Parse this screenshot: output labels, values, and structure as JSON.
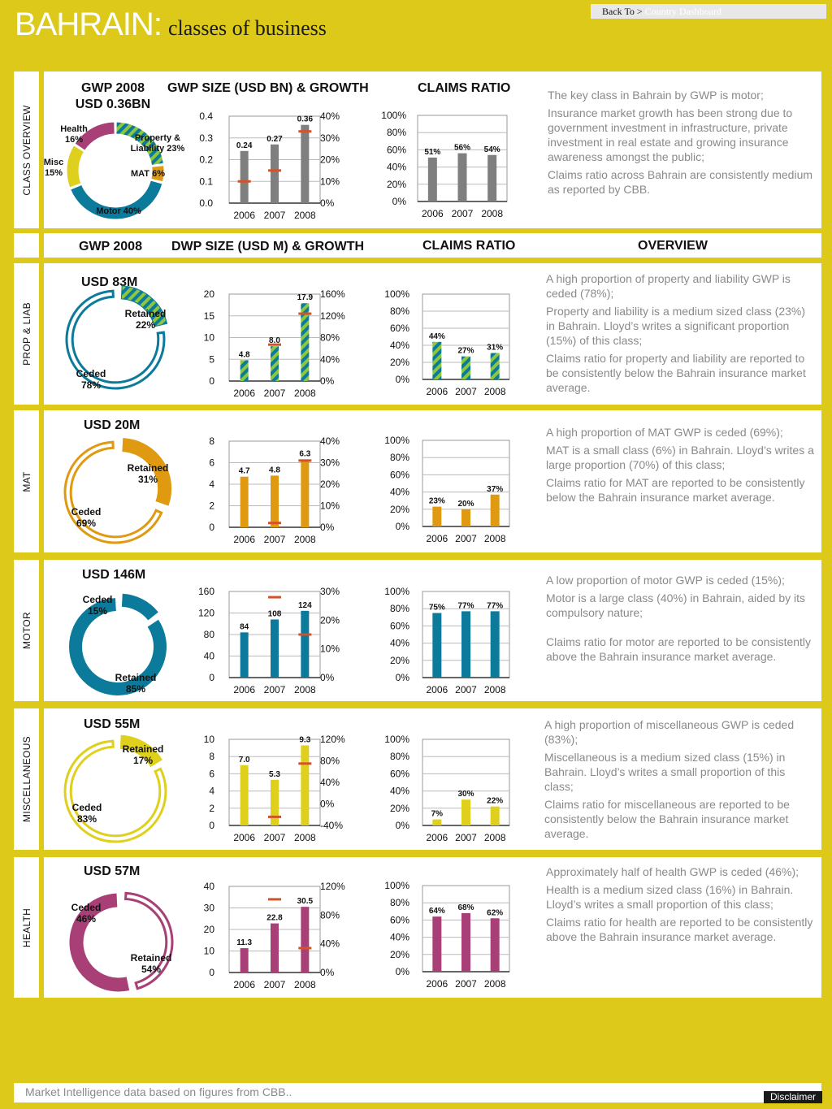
{
  "header": {
    "country": "BAHRAIN:",
    "subtitle": "classes of business",
    "back_label": "Back To >",
    "back_link": "Country Dashboard"
  },
  "colors": {
    "teal": "#0c7b9b",
    "grey": "#7f7f7f",
    "orange": "#e09a12",
    "yellow": "#ded01c",
    "magenta": "#a83f76",
    "growth_marker": "#d2522a",
    "page_bg": "#dcc91a",
    "hatch_green": "#8dc63f"
  },
  "overview": {
    "side_label": "CLASS OVERVIEW",
    "headers": {
      "gwp": "GWP 2008\nUSD 0.36BN",
      "size": "GWP SIZE (USD BN) & GROWTH",
      "claims": "CLAIMS RATIO"
    },
    "paragraphs": [
      "The key class in Bahrain by GWP is motor;",
      "Insurance market growth has been strong due to government investment in infrastructure, private investment in real estate and growing insurance awareness amongst the public;",
      "Claims ratio across Bahrain are consistently medium as reported by CBB."
    ]
  },
  "class_headers": {
    "gwp": "GWP 2008",
    "size": "DWP SIZE (USD M) & GROWTH",
    "claims": "CLAIMS RATIO",
    "overview": "OVERVIEW"
  },
  "sections": [
    {
      "side_label": "PROP & LIAB",
      "gwp_label": "USD 83M",
      "paragraphs": [
        "A high proportion of property and liability GWP is ceded (78%);",
        "Property and liability is a medium sized class (23%) in Bahrain. Lloyd’s writes a significant proportion (15%) of this class;",
        "Claims ratio for property and liability are reported to be consistently below the Bahrain insurance market average."
      ]
    },
    {
      "side_label": "MAT",
      "gwp_label": "USD 20M",
      "paragraphs": [
        "A high proportion of MAT GWP is ceded (69%);",
        "MAT is a small class (6%) in Bahrain. Lloyd’s writes a large proportion (70%) of this class;",
        "Claims ratio for MAT are reported to be consistently below the Bahrain insurance market average."
      ]
    },
    {
      "side_label": "MOTOR",
      "gwp_label": "USD 146M",
      "paragraphs": [
        "A low proportion of motor GWP is ceded (15%);",
        "Motor is a large class (40%) in Bahrain, aided by its compulsory nature;",
        "Claims ratio for motor are reported to be consistently above the Bahrain insurance market average."
      ]
    },
    {
      "side_label": "MISCELLANEOUS",
      "gwp_label": "USD 55M",
      "paragraphs": [
        "A high proportion of miscellaneous GWP is ceded (83%);",
        "Miscellaneous is a medium sized class (15%) in Bahrain. Lloyd’s writes a small proportion of this class;",
        "Claims ratio for miscellaneous are reported to be consistently below the Bahrain insurance market average."
      ]
    },
    {
      "side_label": "HEALTH",
      "gwp_label": "USD 57M",
      "paragraphs": [
        "Approximately half of health GWP is ceded (46%);",
        "Health is a medium sized class (16%) in Bahrain. Lloyd’s writes a small proportion of this class;",
        "Claims ratio for health are reported to be consistently above the Bahrain insurance market average."
      ]
    }
  ],
  "chart_data": [
    {
      "id": "overview-donut",
      "type": "pie",
      "labels": [
        "Property & Liability 23%",
        "MAT 6%",
        "Motor 40%",
        "Misc 15%",
        "Health 16%"
      ],
      "values": [
        23,
        6,
        40,
        15,
        16
      ],
      "colors": [
        "#8dc63f",
        "#e09a12",
        "#0c7b9b",
        "#ded01c",
        "#a83f76"
      ]
    },
    {
      "id": "overview-size",
      "type": "bar",
      "categories": [
        "2006",
        "2007",
        "2008"
      ],
      "values": [
        0.24,
        0.27,
        0.36
      ],
      "value_labels": [
        "0.24",
        "0.27",
        "0.36"
      ],
      "growth": [
        10,
        15,
        33
      ],
      "ylim": [
        0,
        0.4
      ],
      "yticks": [
        "0.0",
        "0.1",
        "0.2",
        "0.3",
        "0.4"
      ],
      "y2lim": [
        0,
        40
      ],
      "y2ticks": [
        "0%",
        "10%",
        "20%",
        "30%",
        "40%"
      ],
      "color": "#7f7f7f"
    },
    {
      "id": "overview-claims",
      "type": "bar",
      "categories": [
        "2006",
        "2007",
        "2008"
      ],
      "values": [
        51,
        56,
        54
      ],
      "value_labels": [
        "51%",
        "56%",
        "54%"
      ],
      "ylim": [
        0,
        100
      ],
      "yticks": [
        "0%",
        "20%",
        "40%",
        "60%",
        "80%",
        "100%"
      ],
      "color": "#7f7f7f"
    },
    {
      "id": "prop-donut",
      "type": "pie",
      "labels": [
        "Retained\n22%",
        "Ceded\n78%"
      ],
      "values": [
        22,
        78
      ],
      "color": "#0c7b9b",
      "hatch": true
    },
    {
      "id": "prop-size",
      "type": "bar",
      "categories": [
        "2006",
        "2007",
        "2008"
      ],
      "values": [
        4.8,
        8.0,
        17.9
      ],
      "value_labels": [
        "4.8",
        "8.0",
        "17.9"
      ],
      "growth": [
        null,
        67,
        124
      ],
      "ylim": [
        0,
        20
      ],
      "yticks": [
        "0",
        "5",
        "10",
        "15",
        "20"
      ],
      "y2lim": [
        0,
        160
      ],
      "y2ticks": [
        "0%",
        "40%",
        "80%",
        "120%",
        "160%"
      ],
      "color": "#0c7b9b",
      "hatch": true
    },
    {
      "id": "prop-claims",
      "type": "bar",
      "categories": [
        "2006",
        "2007",
        "2008"
      ],
      "values": [
        44,
        27,
        31
      ],
      "value_labels": [
        "44%",
        "27%",
        "31%"
      ],
      "ylim": [
        0,
        100
      ],
      "yticks": [
        "0%",
        "20%",
        "40%",
        "60%",
        "80%",
        "100%"
      ],
      "color": "#0c7b9b",
      "hatch": true
    },
    {
      "id": "mat-donut",
      "type": "pie",
      "labels": [
        "Retained\n31%",
        "Ceded\n69%"
      ],
      "values": [
        31,
        69
      ],
      "color": "#e09a12"
    },
    {
      "id": "mat-size",
      "type": "bar",
      "categories": [
        "2006",
        "2007",
        "2008"
      ],
      "values": [
        4.7,
        4.8,
        6.3
      ],
      "value_labels": [
        "4.7",
        "4.8",
        "6.3"
      ],
      "growth": [
        null,
        2,
        31
      ],
      "ylim": [
        0,
        8
      ],
      "yticks": [
        "0",
        "2",
        "4",
        "6",
        "8"
      ],
      "y2lim": [
        0,
        40
      ],
      "y2ticks": [
        "0%",
        "10%",
        "20%",
        "30%",
        "40%"
      ],
      "color": "#e09a12"
    },
    {
      "id": "mat-claims",
      "type": "bar",
      "categories": [
        "2006",
        "2007",
        "2008"
      ],
      "values": [
        23,
        20,
        37
      ],
      "value_labels": [
        "23%",
        "20%",
        "37%"
      ],
      "ylim": [
        0,
        100
      ],
      "yticks": [
        "0%",
        "20%",
        "40%",
        "60%",
        "80%",
        "100%"
      ],
      "color": "#e09a12"
    },
    {
      "id": "motor-donut",
      "type": "pie",
      "labels": [
        "Ceded\n15%",
        "Retained\n85%"
      ],
      "values": [
        15,
        85
      ],
      "color": "#0c7b9b",
      "small_first": true
    },
    {
      "id": "motor-size",
      "type": "bar",
      "categories": [
        "2006",
        "2007",
        "2008"
      ],
      "values": [
        84,
        108,
        124
      ],
      "value_labels": [
        "84",
        "108",
        "124"
      ],
      "growth": [
        null,
        28,
        15
      ],
      "ylim": [
        0,
        160
      ],
      "yticks": [
        "0",
        "40",
        "80",
        "120",
        "160"
      ],
      "y2lim": [
        0,
        30
      ],
      "y2ticks": [
        "0%",
        "10%",
        "20%",
        "30%"
      ],
      "color": "#0c7b9b"
    },
    {
      "id": "motor-claims",
      "type": "bar",
      "categories": [
        "2006",
        "2007",
        "2008"
      ],
      "values": [
        75,
        77,
        77
      ],
      "value_labels": [
        "75%",
        "77%",
        "77%"
      ],
      "ylim": [
        0,
        100
      ],
      "yticks": [
        "0%",
        "20%",
        "40%",
        "60%",
        "80%",
        "100%"
      ],
      "color": "#0c7b9b"
    },
    {
      "id": "misc-donut",
      "type": "pie",
      "labels": [
        "Retained\n17%",
        "Ceded\n83%"
      ],
      "values": [
        17,
        83
      ],
      "color": "#ded01c"
    },
    {
      "id": "misc-size",
      "type": "bar",
      "categories": [
        "2006",
        "2007",
        "2008"
      ],
      "values": [
        7.0,
        5.3,
        9.3
      ],
      "value_labels": [
        "7.0",
        "5.3",
        "9.3"
      ],
      "growth": [
        null,
        -24,
        75
      ],
      "ylim": [
        0,
        10
      ],
      "yticks": [
        "0",
        "2",
        "4",
        "6",
        "8",
        "10"
      ],
      "y2lim": [
        -40,
        120
      ],
      "y2ticks": [
        "-40%",
        "0%",
        "40%",
        "80%",
        "120%"
      ],
      "color": "#ded01c"
    },
    {
      "id": "misc-claims",
      "type": "bar",
      "categories": [
        "2006",
        "2007",
        "2008"
      ],
      "values": [
        7,
        30,
        22
      ],
      "value_labels": [
        "7%",
        "30%",
        "22%"
      ],
      "ylim": [
        0,
        100
      ],
      "yticks": [
        "0%",
        "20%",
        "40%",
        "60%",
        "80%",
        "100%"
      ],
      "color": "#ded01c"
    },
    {
      "id": "health-donut",
      "type": "pie",
      "labels": [
        "Ceded\n46%",
        "Retained\n54%"
      ],
      "values": [
        46,
        54
      ],
      "color": "#a83f76",
      "small_first": true
    },
    {
      "id": "health-size",
      "type": "bar",
      "categories": [
        "2006",
        "2007",
        "2008"
      ],
      "values": [
        11.3,
        22.8,
        30.5
      ],
      "value_labels": [
        "11.3",
        "22.8",
        "30.5"
      ],
      "growth": [
        null,
        102,
        34
      ],
      "ylim": [
        0,
        40
      ],
      "yticks": [
        "0",
        "10",
        "20",
        "30",
        "40"
      ],
      "y2lim": [
        0,
        120
      ],
      "y2ticks": [
        "0%",
        "40%",
        "80%",
        "120%"
      ],
      "color": "#a83f76"
    },
    {
      "id": "health-claims",
      "type": "bar",
      "categories": [
        "2006",
        "2007",
        "2008"
      ],
      "values": [
        64,
        68,
        62
      ],
      "value_labels": [
        "64%",
        "68%",
        "62%"
      ],
      "ylim": [
        0,
        100
      ],
      "yticks": [
        "0%",
        "20%",
        "40%",
        "60%",
        "80%",
        "100%"
      ],
      "color": "#a83f76"
    }
  ],
  "footer": {
    "note": "Market Intelligence data based on figures from CBB..",
    "disclaimer": "Disclaimer"
  }
}
